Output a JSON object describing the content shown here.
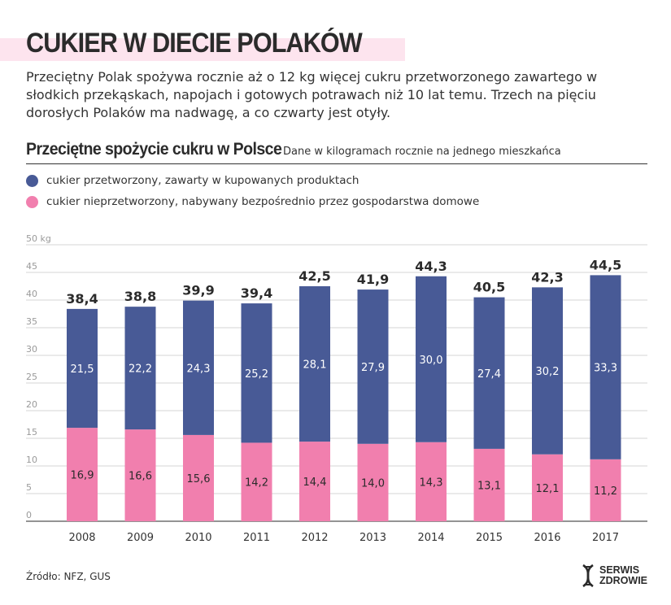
{
  "header": {
    "title": "CUKIER W DIECIE POLAKÓW",
    "lead": "Przeciętny Polak spożywa rocznie aż o 12 kg więcej cukru przetworzonego zawartego w słodkich przekąskach, napojach i gotowych potrawach niż 10 lat temu. Trzech na pięciu dorosłych Polaków ma nadwagę, a co czwarty jest otyły."
  },
  "legend": {
    "processed": "cukier przetworzony, zawarty w kupowanych produktach",
    "unprocessed": "cukier nieprzetworzony, nabywany bezpośrednio przez gospodarstwa domowe"
  },
  "colors": {
    "processed": "#485a96",
    "unprocessed": "#f17fae",
    "title_band": "#fde4ee"
  },
  "footer": {
    "source": "Źródło: NFZ, GUS",
    "brand_line1": "SERWIS",
    "brand_line2": "ZDROWIE",
    "brand_icon": "dna-helix-icon"
  },
  "chart_data": {
    "type": "bar",
    "stacked": true,
    "title": "Przeciętne spożycie cukru w Polsce",
    "subtitle": "Dane w kilogramach rocznie na jednego mieszkańca",
    "ylabel_unit": "50 kg",
    "ylim": [
      0,
      50
    ],
    "yticks": [
      0,
      5,
      10,
      15,
      20,
      25,
      30,
      35,
      40,
      45
    ],
    "grid": true,
    "categories": [
      "2008",
      "2009",
      "2010",
      "2011",
      "2012",
      "2013",
      "2014",
      "2015",
      "2016",
      "2017"
    ],
    "series": [
      {
        "name": "cukier nieprzetworzony, nabywany bezpośrednio przez gospodarstwa domowe",
        "values": [
          16.9,
          16.6,
          15.6,
          14.2,
          14.4,
          14.0,
          14.3,
          13.1,
          12.1,
          11.2
        ],
        "labels": [
          "16,9",
          "16,6",
          "15,6",
          "14,2",
          "14,4",
          "14,0",
          "14,3",
          "13,1",
          "12,1",
          "11,2"
        ]
      },
      {
        "name": "cukier przetworzony, zawarty w kupowanych produktach",
        "values": [
          21.5,
          22.2,
          24.3,
          25.2,
          28.1,
          27.9,
          30.0,
          27.4,
          30.2,
          33.3
        ],
        "labels": [
          "21,5",
          "22,2",
          "24,3",
          "25,2",
          "28,1",
          "27,9",
          "30,0",
          "27,4",
          "30,2",
          "33,3"
        ]
      }
    ],
    "totals": [
      38.4,
      38.8,
      39.9,
      39.4,
      42.5,
      41.9,
      44.3,
      40.5,
      42.3,
      44.5
    ],
    "total_labels": [
      "38,4",
      "38,8",
      "39,9",
      "39,4",
      "42,5",
      "41,9",
      "44,3",
      "40,5",
      "42,3",
      "44,5"
    ]
  }
}
